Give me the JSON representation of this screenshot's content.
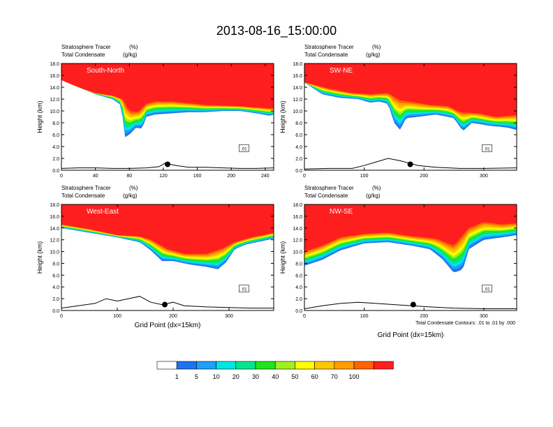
{
  "title": "2013-08-16_15:00:00",
  "footnote": "Total Condensate Contours: .01 to .01 by .000",
  "chart_data": [
    {
      "type": "heatmap",
      "panel_label": "South-North",
      "subtitle_left": [
        "Stratosphere Tracer",
        "Total Condensate"
      ],
      "subtitle_units": [
        "(%)",
        "(g/kg)"
      ],
      "xlabel": "",
      "ylabel": "Height (km)",
      "xlim": [
        0,
        250
      ],
      "ylim": [
        0,
        18
      ],
      "xticks": [
        "0",
        "40",
        "80",
        "120",
        "160",
        "200",
        "240"
      ],
      "yticks": [
        "0.0",
        "2.0",
        "4.0",
        "6.0",
        "8.0",
        "10.0",
        "12.0",
        "14.0",
        "16.0",
        "18.0"
      ],
      "tracer_top_100": [
        [
          0,
          15.2
        ],
        [
          20,
          14.0
        ],
        [
          40,
          13.0
        ],
        [
          60,
          12.6
        ],
        [
          72,
          12.0
        ],
        [
          80,
          10.0
        ],
        [
          90,
          9.8
        ],
        [
          100,
          11.2
        ],
        [
          110,
          11.6
        ],
        [
          130,
          11.6
        ],
        [
          150,
          11.3
        ],
        [
          170,
          11.0
        ],
        [
          190,
          10.9
        ],
        [
          210,
          10.8
        ],
        [
          230,
          10.6
        ],
        [
          250,
          10.4
        ]
      ],
      "tracer_bottom_1": [
        [
          0,
          15.2
        ],
        [
          20,
          14.0
        ],
        [
          40,
          12.8
        ],
        [
          60,
          12.0
        ],
        [
          70,
          11.0
        ],
        [
          72,
          9.0
        ],
        [
          70,
          7.0
        ],
        [
          74,
          5.5
        ],
        [
          80,
          6.0
        ],
        [
          88,
          7.2
        ],
        [
          95,
          7.0
        ],
        [
          100,
          9.0
        ],
        [
          110,
          9.4
        ],
        [
          130,
          9.6
        ],
        [
          150,
          9.8
        ],
        [
          170,
          9.8
        ],
        [
          190,
          10.0
        ],
        [
          210,
          10.0
        ],
        [
          230,
          9.6
        ],
        [
          245,
          9.2
        ],
        [
          250,
          9.4
        ]
      ],
      "terrain": [
        [
          0,
          0.3
        ],
        [
          20,
          0.4
        ],
        [
          40,
          0.4
        ],
        [
          60,
          0.3
        ],
        [
          80,
          0.3
        ],
        [
          100,
          0.4
        ],
        [
          115,
          0.6
        ],
        [
          122,
          1.2
        ],
        [
          128,
          1.0
        ],
        [
          135,
          0.8
        ],
        [
          150,
          0.5
        ],
        [
          170,
          0.5
        ],
        [
          190,
          0.4
        ],
        [
          210,
          0.3
        ],
        [
          230,
          0.3
        ],
        [
          250,
          0.4
        ]
      ],
      "condensate_label": ".01",
      "marker": [
        125,
        1.0
      ]
    },
    {
      "type": "heatmap",
      "panel_label": "SW-NE",
      "subtitle_left": [
        "Stratosphere Tracer",
        "Total Condensate"
      ],
      "subtitle_units": [
        "(%)",
        "(g/kg)"
      ],
      "xlabel": "",
      "ylabel": "Height (km)",
      "xlim": [
        0,
        355
      ],
      "ylim": [
        0,
        18
      ],
      "xticks": [
        "0",
        "100",
        "200",
        "300"
      ],
      "yticks": [
        "0.0",
        "2.0",
        "4.0",
        "6.0",
        "8.0",
        "10.0",
        "12.0",
        "14.0",
        "16.0",
        "18.0"
      ],
      "tracer_top_100": [
        [
          0,
          14.8
        ],
        [
          40,
          13.8
        ],
        [
          80,
          13.0
        ],
        [
          110,
          12.8
        ],
        [
          140,
          13.0
        ],
        [
          160,
          11.8
        ],
        [
          180,
          11.5
        ],
        [
          210,
          11.0
        ],
        [
          240,
          10.8
        ],
        [
          260,
          9.8
        ],
        [
          290,
          9.6
        ],
        [
          320,
          9.0
        ],
        [
          355,
          9.3
        ]
      ],
      "tracer_bottom_1": [
        [
          0,
          14.8
        ],
        [
          30,
          12.8
        ],
        [
          60,
          12.2
        ],
        [
          90,
          12.0
        ],
        [
          110,
          11.4
        ],
        [
          125,
          11.6
        ],
        [
          140,
          11.2
        ],
        [
          150,
          8.0
        ],
        [
          160,
          6.8
        ],
        [
          170,
          8.8
        ],
        [
          190,
          9.0
        ],
        [
          220,
          9.4
        ],
        [
          250,
          8.8
        ],
        [
          265,
          6.6
        ],
        [
          280,
          8.0
        ],
        [
          310,
          7.5
        ],
        [
          340,
          7.2
        ],
        [
          355,
          6.8
        ]
      ],
      "terrain": [
        [
          0,
          0.2
        ],
        [
          40,
          0.3
        ],
        [
          80,
          0.3
        ],
        [
          100,
          0.8
        ],
        [
          120,
          1.4
        ],
        [
          140,
          2.0
        ],
        [
          160,
          1.6
        ],
        [
          175,
          1.2
        ],
        [
          190,
          0.8
        ],
        [
          220,
          0.5
        ],
        [
          260,
          0.3
        ],
        [
          300,
          0.3
        ],
        [
          355,
          0.4
        ]
      ],
      "condensate_label": ".01",
      "marker": [
        177,
        1.0
      ]
    },
    {
      "type": "heatmap",
      "panel_label": "West-East",
      "subtitle_left": [
        "Stratosphere Tracer",
        "Total Condensate"
      ],
      "subtitle_units": [
        "(%)",
        "(g/kg)"
      ],
      "xlabel": "Grid Point (dx=15km)",
      "ylabel": "Height (km)",
      "xlim": [
        0,
        380
      ],
      "ylim": [
        0,
        18
      ],
      "xticks": [
        "0",
        "100",
        "200",
        "300"
      ],
      "yticks": [
        "0.0",
        "2.0",
        "4.0",
        "6.0",
        "8.0",
        "10.0",
        "12.0",
        "14.0",
        "16.0",
        "18.0"
      ],
      "tracer_top_100": [
        [
          0,
          14.6
        ],
        [
          50,
          13.8
        ],
        [
          100,
          12.8
        ],
        [
          140,
          12.6
        ],
        [
          160,
          12.0
        ],
        [
          190,
          10.4
        ],
        [
          220,
          9.6
        ],
        [
          260,
          9.6
        ],
        [
          290,
          10.6
        ],
        [
          310,
          11.6
        ],
        [
          340,
          12.4
        ],
        [
          380,
          13.2
        ]
      ],
      "tracer_bottom_1": [
        [
          0,
          14.0
        ],
        [
          50,
          13.2
        ],
        [
          100,
          12.4
        ],
        [
          140,
          11.6
        ],
        [
          160,
          10.2
        ],
        [
          180,
          8.4
        ],
        [
          200,
          8.4
        ],
        [
          230,
          7.8
        ],
        [
          260,
          7.4
        ],
        [
          280,
          7.0
        ],
        [
          295,
          8.2
        ],
        [
          310,
          10.4
        ],
        [
          330,
          11.2
        ],
        [
          360,
          11.8
        ],
        [
          380,
          12.2
        ]
      ],
      "terrain": [
        [
          0,
          0.4
        ],
        [
          30,
          0.8
        ],
        [
          60,
          1.2
        ],
        [
          80,
          2.0
        ],
        [
          100,
          1.6
        ],
        [
          120,
          2.0
        ],
        [
          140,
          2.4
        ],
        [
          160,
          1.4
        ],
        [
          180,
          1.0
        ],
        [
          200,
          1.4
        ],
        [
          220,
          0.8
        ],
        [
          260,
          0.6
        ],
        [
          300,
          0.5
        ],
        [
          340,
          0.4
        ],
        [
          380,
          0.4
        ]
      ],
      "condensate_label": ".01",
      "marker": [
        185,
        1.0
      ]
    },
    {
      "type": "heatmap",
      "panel_label": "NW-SE",
      "subtitle_left": [
        "Stratosphere Tracer",
        "Total Condensate"
      ],
      "subtitle_units": [
        "(%)",
        "(g/kg)"
      ],
      "xlabel": "Grid Point (dx=15km)",
      "ylabel": "Height (km)",
      "xlim": [
        0,
        355
      ],
      "ylim": [
        0,
        18
      ],
      "xticks": [
        "0",
        "100",
        "200",
        "300"
      ],
      "yticks": [
        "0.0",
        "2.0",
        "4.0",
        "6.0",
        "8.0",
        "10.0",
        "12.0",
        "14.0",
        "16.0",
        "18.0"
      ],
      "tracer_top_100": [
        [
          0,
          10.0
        ],
        [
          30,
          11.0
        ],
        [
          60,
          12.4
        ],
        [
          100,
          13.0
        ],
        [
          140,
          13.2
        ],
        [
          180,
          12.6
        ],
        [
          220,
          12.2
        ],
        [
          250,
          11.0
        ],
        [
          275,
          14.0
        ],
        [
          300,
          15.0
        ],
        [
          330,
          14.6
        ],
        [
          355,
          14.8
        ]
      ],
      "tracer_bottom_1": [
        [
          0,
          7.6
        ],
        [
          30,
          8.6
        ],
        [
          60,
          10.2
        ],
        [
          100,
          11.4
        ],
        [
          140,
          11.6
        ],
        [
          180,
          11.0
        ],
        [
          210,
          10.4
        ],
        [
          230,
          8.8
        ],
        [
          250,
          6.4
        ],
        [
          265,
          7.0
        ],
        [
          275,
          10.4
        ],
        [
          300,
          12.0
        ],
        [
          330,
          12.4
        ],
        [
          355,
          12.8
        ]
      ],
      "terrain": [
        [
          0,
          0.3
        ],
        [
          30,
          0.8
        ],
        [
          60,
          1.2
        ],
        [
          90,
          1.4
        ],
        [
          120,
          1.2
        ],
        [
          150,
          1.0
        ],
        [
          180,
          0.8
        ],
        [
          210,
          0.6
        ],
        [
          250,
          0.4
        ],
        [
          300,
          0.3
        ],
        [
          355,
          0.3
        ]
      ],
      "condensate_label": ".01",
      "marker": [
        182,
        1.0
      ]
    }
  ],
  "colorbar": {
    "labels": [
      "1",
      "5",
      "10",
      "20",
      "30",
      "40",
      "50",
      "60",
      "70",
      "100"
    ],
    "colors": [
      "#ffffff",
      "#1e73f0",
      "#1ea0ff",
      "#00e6e6",
      "#00e68c",
      "#1ee61e",
      "#a0f01e",
      "#ffff00",
      "#ffc800",
      "#ffa000",
      "#ff6400",
      "#ff1e1e"
    ]
  }
}
